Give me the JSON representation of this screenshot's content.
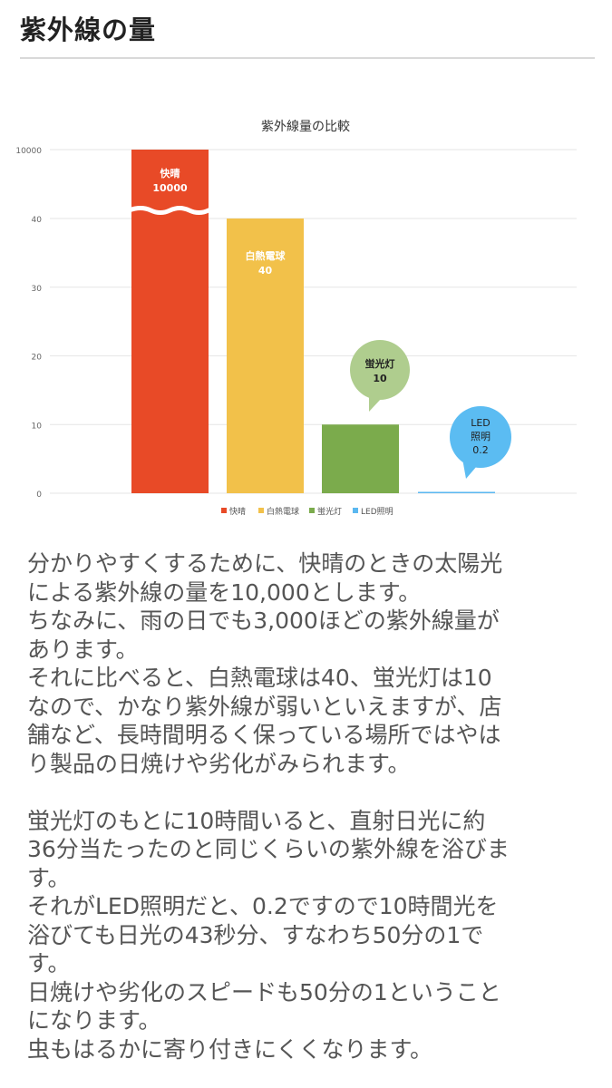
{
  "page": {
    "heading": "紫外線の量"
  },
  "chart_data": {
    "type": "bar",
    "title": "紫外線量の比較",
    "categories": [
      "快晴",
      "白熱電球",
      "蛍光灯",
      "LED照明"
    ],
    "values": [
      10000,
      40,
      10,
      0.2
    ],
    "colors": [
      "#e84a27",
      "#f2c14a",
      "#7bab4c",
      "#5bb8f0"
    ],
    "y_ticks": [
      "0",
      "10",
      "20",
      "30",
      "40",
      "10000"
    ],
    "ylim": [
      0,
      40
    ],
    "axis_break": true,
    "grid": true,
    "legend": [
      "快晴",
      "白熱電球",
      "蛍光灯",
      "LED照明"
    ],
    "legend_position": "bottom",
    "annotations": [
      {
        "lines": [
          "快晴",
          "10000"
        ],
        "style": "in-bar"
      },
      {
        "lines": [
          "白熱電球",
          "40"
        ],
        "style": "in-bar"
      },
      {
        "lines": [
          "蛍光灯",
          "10"
        ],
        "style": "callout",
        "color": "#afcd8e"
      },
      {
        "lines": [
          "LED",
          "照明",
          "0.2"
        ],
        "style": "callout",
        "color": "#5bbcf2"
      }
    ]
  },
  "article": {
    "para1": [
      "分かりやすくするために、快晴のときの太陽光",
      "による紫外線の量を10,000とします。",
      "ちなみに、雨の日でも3,000ほどの紫外線量が",
      "あります。",
      "それに比べると、白熱電球は40、蛍光灯は10",
      "なので、かなり紫外線が弱いといえますが、店",
      "舗など、長時間明るく保っている場所ではやは",
      "り製品の日焼けや劣化がみられます。"
    ],
    "para2": [
      "蛍光灯のもとに10時間いると、直射日光に約",
      "36分当たったのと同じくらいの紫外線を浴びま",
      "す。",
      "それがLED照明だと、0.2ですので10時間光を",
      "浴びても日光の43秒分、すなわち50分の1で",
      "す。",
      "日焼けや劣化のスピードも50分の1ということ",
      "になります。",
      "虫もはるかに寄り付きにくくなります。"
    ]
  }
}
